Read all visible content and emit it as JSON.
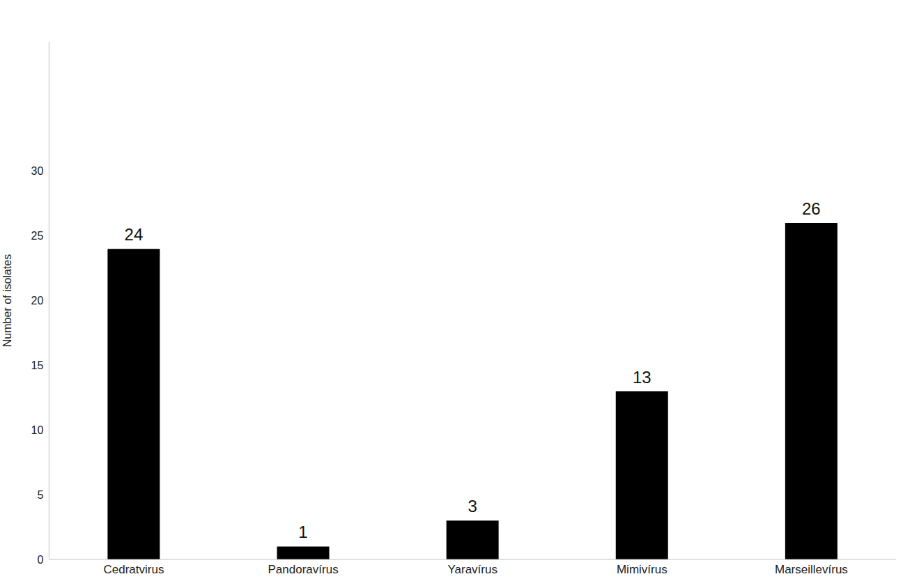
{
  "chart_data": {
    "type": "bar",
    "y_label": "Number of isolates",
    "categories": [
      "Cedratvirus",
      "Pandoravírus",
      "Yaravírus",
      "Mimivírus",
      "Marseillevírus"
    ],
    "values": [
      24,
      1,
      3,
      13,
      26
    ],
    "color": "#000000",
    "ylim": [
      0,
      40
    ],
    "yticks": [
      0,
      5,
      10,
      15,
      20,
      25,
      30
    ],
    "grid": false,
    "data_labels": true
  }
}
